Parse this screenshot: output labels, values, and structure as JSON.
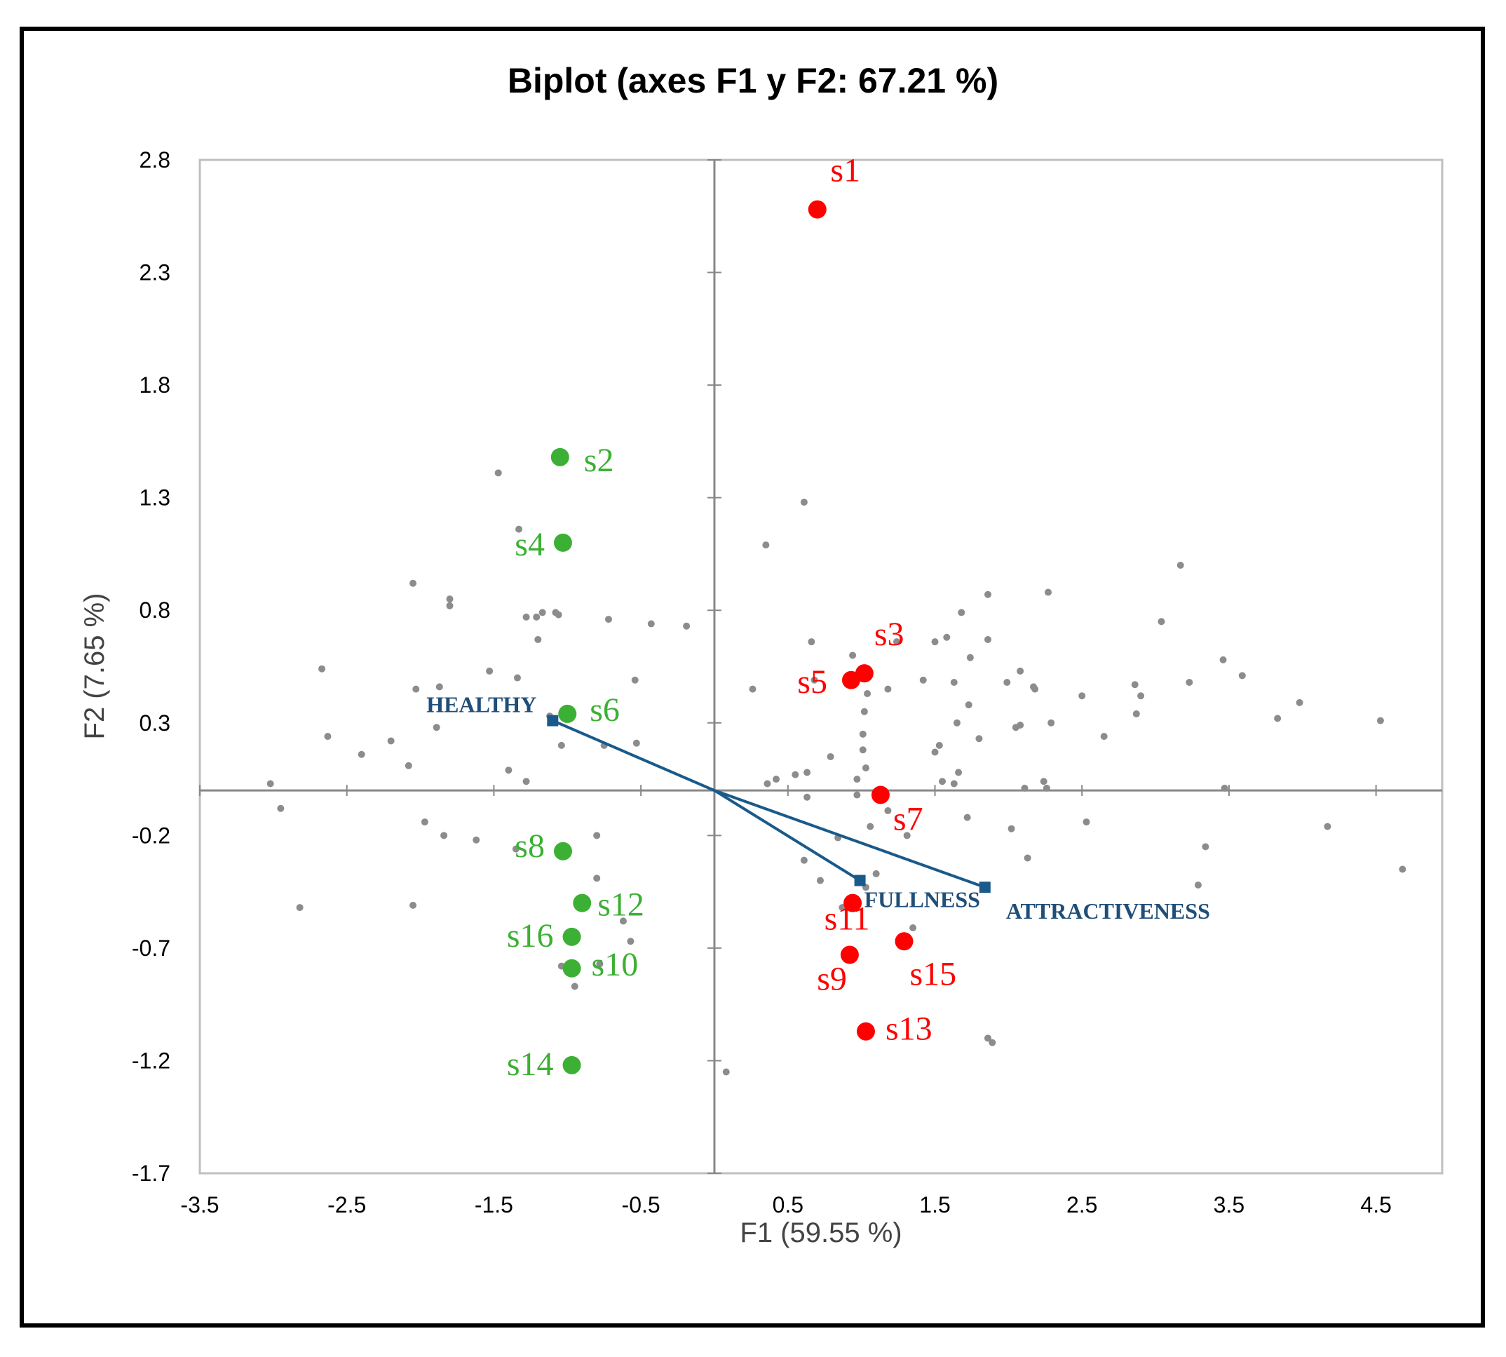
{
  "chart_data": {
    "type": "scatter",
    "title": "Biplot (axes F1 y F2: 67.21 %)",
    "xlabel": "F1 (59.55 %)",
    "ylabel": "F2 (7.65 %)",
    "xlim": [
      -3.5,
      4.95
    ],
    "ylim": [
      -1.7,
      2.8
    ],
    "xticks": [
      "-3.5",
      "-2.5",
      "-1.5",
      "-0.5",
      "0.5",
      "1.5",
      "2.5",
      "3.5",
      "4.5"
    ],
    "yticks": [
      "2.8",
      "2.3",
      "1.8",
      "1.3",
      "0.8",
      "0.3",
      "-0.2",
      "-0.7",
      "-1.2",
      "-1.7"
    ],
    "grid": false,
    "colors": {
      "red_group": "#ff0000",
      "green_group": "#3cb034",
      "variables": "#1a5a8a",
      "consumers": "#8c8c8c",
      "axes": "#888888"
    },
    "samples": [
      {
        "name": "s1",
        "x": 0.7,
        "y": 2.58,
        "group": "red"
      },
      {
        "name": "s2",
        "x": -1.05,
        "y": 1.48,
        "group": "green"
      },
      {
        "name": "s3",
        "x": 1.02,
        "y": 0.52,
        "group": "red"
      },
      {
        "name": "s4",
        "x": -1.03,
        "y": 1.1,
        "group": "green"
      },
      {
        "name": "s5",
        "x": 0.93,
        "y": 0.49,
        "group": "red"
      },
      {
        "name": "s6",
        "x": -1.0,
        "y": 0.34,
        "group": "green"
      },
      {
        "name": "s7",
        "x": 1.13,
        "y": -0.02,
        "group": "red"
      },
      {
        "name": "s8",
        "x": -1.03,
        "y": -0.27,
        "group": "green"
      },
      {
        "name": "s9",
        "x": 0.92,
        "y": -0.73,
        "group": "red"
      },
      {
        "name": "s10",
        "x": -0.97,
        "y": -0.79,
        "group": "green"
      },
      {
        "name": "s11",
        "x": 0.94,
        "y": -0.5,
        "group": "red"
      },
      {
        "name": "s12",
        "x": -0.9,
        "y": -0.5,
        "group": "green"
      },
      {
        "name": "s13",
        "x": 1.03,
        "y": -1.07,
        "group": "red"
      },
      {
        "name": "s14",
        "x": -0.97,
        "y": -1.22,
        "group": "green"
      },
      {
        "name": "s15",
        "x": 1.29,
        "y": -0.67,
        "group": "red"
      },
      {
        "name": "s16",
        "x": -0.97,
        "y": -0.65,
        "group": "green"
      }
    ],
    "variables": [
      {
        "name": "HEALTHY",
        "x": -1.1,
        "y": 0.31
      },
      {
        "name": "FULLNESS",
        "x": 0.99,
        "y": -0.4
      },
      {
        "name": "ATTRACTIVENESS",
        "x": 1.84,
        "y": -0.43
      }
    ],
    "consumers": [
      [
        -3.02,
        0.03
      ],
      [
        -2.95,
        -0.08
      ],
      [
        -2.82,
        -0.52
      ],
      [
        -2.67,
        0.54
      ],
      [
        -2.63,
        0.24
      ],
      [
        -2.4,
        0.16
      ],
      [
        -2.2,
        0.22
      ],
      [
        -2.08,
        0.11
      ],
      [
        -2.05,
        0.92
      ],
      [
        -2.05,
        -0.51
      ],
      [
        -2.03,
        0.45
      ],
      [
        -1.97,
        -0.14
      ],
      [
        -1.89,
        0.28
      ],
      [
        -1.87,
        0.46
      ],
      [
        -1.84,
        -0.2
      ],
      [
        -1.8,
        0.85
      ],
      [
        -1.8,
        0.82
      ],
      [
        -1.62,
        -0.22
      ],
      [
        -1.53,
        0.53
      ],
      [
        -1.47,
        1.41
      ],
      [
        -1.4,
        0.09
      ],
      [
        -1.35,
        -0.26
      ],
      [
        -1.34,
        0.5
      ],
      [
        -1.33,
        1.16
      ],
      [
        -1.28,
        0.77
      ],
      [
        -1.28,
        0.04
      ],
      [
        -1.21,
        0.77
      ],
      [
        -1.2,
        0.67
      ],
      [
        -1.17,
        0.79
      ],
      [
        -1.12,
        0.33
      ],
      [
        -1.08,
        0.79
      ],
      [
        -1.06,
        0.78
      ],
      [
        -1.04,
        0.2
      ],
      [
        -1.04,
        -0.78
      ],
      [
        -0.95,
        -0.87
      ],
      [
        -0.8,
        -0.39
      ],
      [
        -0.8,
        -0.2
      ],
      [
        -0.78,
        -0.77
      ],
      [
        -0.75,
        0.2
      ],
      [
        -0.72,
        0.76
      ],
      [
        -0.62,
        -0.58
      ],
      [
        -0.57,
        -0.67
      ],
      [
        -0.54,
        0.49
      ],
      [
        -0.53,
        0.21
      ],
      [
        -0.43,
        0.74
      ],
      [
        -0.19,
        0.73
      ],
      [
        0.08,
        -1.25
      ],
      [
        0.26,
        0.45
      ],
      [
        0.35,
        1.09
      ],
      [
        0.36,
        0.03
      ],
      [
        0.42,
        0.05
      ],
      [
        0.55,
        0.07
      ],
      [
        0.61,
        1.28
      ],
      [
        0.61,
        -0.31
      ],
      [
        0.63,
        0.08
      ],
      [
        0.63,
        -0.03
      ],
      [
        0.66,
        0.66
      ],
      [
        0.68,
        0.49
      ],
      [
        0.72,
        -0.4
      ],
      [
        0.79,
        0.15
      ],
      [
        0.84,
        -0.21
      ],
      [
        0.87,
        -0.52
      ],
      [
        0.94,
        0.6
      ],
      [
        0.95,
        0.5
      ],
      [
        0.97,
        0.05
      ],
      [
        0.97,
        -0.02
      ],
      [
        1.01,
        0.18
      ],
      [
        1.01,
        0.25
      ],
      [
        1.02,
        0.35
      ],
      [
        1.03,
        0.1
      ],
      [
        1.03,
        -0.43
      ],
      [
        1.04,
        0.43
      ],
      [
        1.06,
        -0.16
      ],
      [
        1.1,
        -0.37
      ],
      [
        1.18,
        -0.09
      ],
      [
        1.18,
        0.45
      ],
      [
        1.24,
        0.66
      ],
      [
        1.31,
        -0.2
      ],
      [
        1.35,
        -0.61
      ],
      [
        1.42,
        0.49
      ],
      [
        1.5,
        0.66
      ],
      [
        1.5,
        0.17
      ],
      [
        1.53,
        0.2
      ],
      [
        1.55,
        0.04
      ],
      [
        1.58,
        0.68
      ],
      [
        1.63,
        0.03
      ],
      [
        1.63,
        0.48
      ],
      [
        1.65,
        0.3
      ],
      [
        1.66,
        0.08
      ],
      [
        1.68,
        0.79
      ],
      [
        1.72,
        -0.12
      ],
      [
        1.73,
        0.38
      ],
      [
        1.74,
        0.59
      ],
      [
        1.8,
        0.23
      ],
      [
        1.86,
        0.67
      ],
      [
        1.86,
        0.87
      ],
      [
        1.86,
        -1.1
      ],
      [
        1.89,
        -1.12
      ],
      [
        1.99,
        0.48
      ],
      [
        2.02,
        -0.17
      ],
      [
        2.05,
        0.28
      ],
      [
        2.08,
        0.29
      ],
      [
        2.08,
        0.53
      ],
      [
        2.11,
        0.01
      ],
      [
        2.13,
        -0.3
      ],
      [
        2.17,
        0.46
      ],
      [
        2.18,
        0.45
      ],
      [
        2.24,
        0.04
      ],
      [
        2.26,
        0.01
      ],
      [
        2.27,
        0.88
      ],
      [
        2.29,
        0.3
      ],
      [
        2.5,
        0.42
      ],
      [
        2.53,
        -0.14
      ],
      [
        2.65,
        0.24
      ],
      [
        2.86,
        0.47
      ],
      [
        2.87,
        0.34
      ],
      [
        2.9,
        0.42
      ],
      [
        3.04,
        0.75
      ],
      [
        3.17,
        1.0
      ],
      [
        3.23,
        0.48
      ],
      [
        3.29,
        -0.42
      ],
      [
        3.34,
        -0.25
      ],
      [
        3.46,
        0.58
      ],
      [
        3.47,
        0.01
      ],
      [
        3.59,
        0.51
      ],
      [
        3.83,
        0.32
      ],
      [
        3.98,
        0.39
      ],
      [
        4.17,
        -0.16
      ],
      [
        4.53,
        0.31
      ],
      [
        4.68,
        -0.35
      ]
    ]
  }
}
